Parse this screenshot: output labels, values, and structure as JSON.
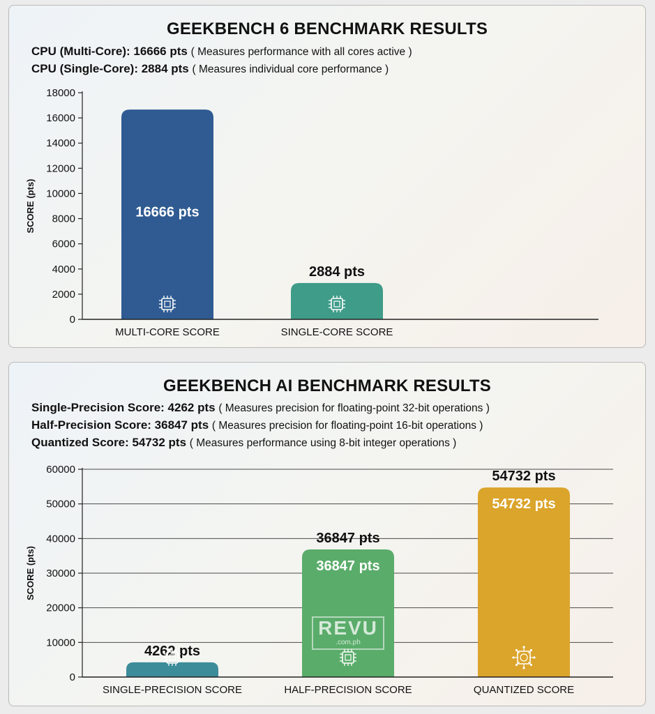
{
  "geekbench6": {
    "title": "GEEKBENCH 6 BENCHMARK RESULTS",
    "lines": [
      {
        "label": "CPU (Multi-Core): 16666 pts",
        "desc": "( Measures performance with all cores active )"
      },
      {
        "label": "CPU (Single-Core): 2884 pts",
        "desc": "( Measures individual core performance )"
      }
    ]
  },
  "geekbench_ai": {
    "title": "GEEKBENCH AI BENCHMARK RESULTS",
    "lines": [
      {
        "label": "Single-Precision Score: 4262 pts",
        "desc": "( Measures precision for floating-point 32-bit operations )"
      },
      {
        "label": "Half-Precision Score: 36847 pts",
        "desc": "( Measures precision for floating-point 16-bit operations )"
      },
      {
        "label": "Quantized Score: 54732 pts",
        "desc": "( Measures performance using 8-bit integer operations )"
      }
    ]
  },
  "watermark": {
    "brand": "REVU",
    "domain": ".com.ph"
  },
  "chart_data": [
    {
      "type": "bar",
      "categories": [
        "MULTI-CORE SCORE",
        "SINGLE-CORE SCORE"
      ],
      "values": [
        16666,
        2884
      ],
      "data_labels": [
        "16666 pts",
        "2884 pts"
      ],
      "label_position": [
        "inside",
        "above"
      ],
      "colors": [
        "#2f5b92",
        "#3e9c88"
      ],
      "icons": [
        "cpu-chip-icon",
        "cpu-chip-icon"
      ],
      "ylabel": "SCORE (pts)",
      "ylim": [
        0,
        18000
      ],
      "yticks": [
        0,
        2000,
        4000,
        6000,
        8000,
        10000,
        12000,
        14000,
        16000,
        18000
      ],
      "grid": false
    },
    {
      "type": "bar",
      "categories": [
        "SINGLE-PRECISION SCORE",
        "HALF-PRECISION SCORE",
        "QUANTIZED SCORE"
      ],
      "values": [
        4262,
        36847,
        54732
      ],
      "data_labels": [
        "4262 pts",
        "36847 pts",
        "54732 pts"
      ],
      "label_position": [
        "above",
        "both",
        "both"
      ],
      "colors": [
        "#3d8c9a",
        "#5aac6a",
        "#dba42b"
      ],
      "icons": [
        "cpu-chip-icon",
        "cpu-chip-icon",
        "ai-chip-icon"
      ],
      "ylabel": "SCORE (pts)",
      "ylim": [
        0,
        60000
      ],
      "yticks": [
        0,
        10000,
        20000,
        30000,
        40000,
        50000,
        60000
      ],
      "grid": true
    }
  ]
}
